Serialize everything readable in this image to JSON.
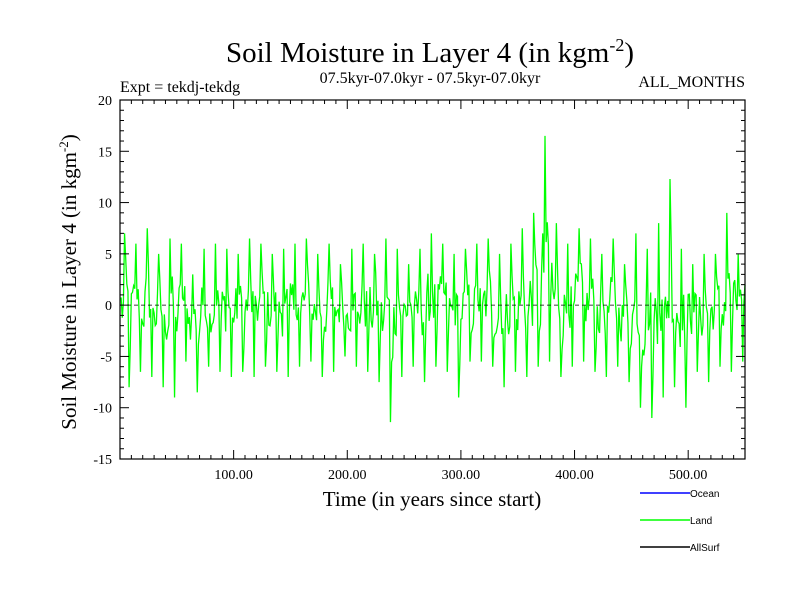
{
  "chart_data": {
    "type": "line",
    "title": "Soil Moisture in Layer 4 (in kgm",
    "title_superscript": "-2",
    "title_close": ")",
    "subtitle_left": "Expt = tekdj-tekdg",
    "subtitle_center": "07.5kyr-07.0kyr - 07.5kyr-07.0kyr",
    "subtitle_right": "ALL_MONTHS",
    "xlabel": "Time (in years since start)",
    "ylabel": "Soil Moisture in Layer 4 (in kgm",
    "ylabel_superscript": "-2",
    "ylabel_close": ")",
    "xlim": [
      0,
      550
    ],
    "ylim": [
      -15,
      20
    ],
    "xticks": [
      100,
      200,
      300,
      400,
      500
    ],
    "xtick_labels": [
      "100.00",
      "200.00",
      "300.00",
      "400.00",
      "500.00"
    ],
    "yticks": [
      -15,
      -10,
      -5,
      0,
      5,
      10,
      15,
      20
    ],
    "ytick_labels": [
      "-15",
      "-10",
      "-5",
      "0",
      "5",
      "10",
      "15",
      "20"
    ],
    "zero_line": 0,
    "legend": [
      {
        "name": "Ocean",
        "color": "#0000ff"
      },
      {
        "name": "Land",
        "color": "#00ff00"
      },
      {
        "name": "AllSurf",
        "color": "#000000"
      }
    ],
    "series": [
      {
        "name": "Land",
        "color": "#00ff00",
        "x_start": 1,
        "x_step": 1,
        "envelope_note": "approximate local max/min per 10-year window (dense yearly series)",
        "window_years": 10,
        "window_max": [
          7.0,
          6.0,
          7.5,
          5.0,
          6.5,
          6.0,
          3.0,
          5.5,
          6.0,
          5.5,
          5.0,
          6.5,
          6.0,
          5.0,
          5.5,
          6.0,
          6.5,
          5.0,
          6.0,
          4.0,
          5.5,
          6.0,
          5.0,
          6.5,
          5.5,
          4.0,
          5.5,
          7.0,
          6.0,
          5.0,
          5.5,
          6.0,
          6.5,
          5.0,
          6.0,
          7.5,
          9.0,
          16.5,
          8.0,
          6.0,
          7.5,
          6.5,
          5.0,
          6.5,
          4.0,
          7.0,
          5.5,
          8.0,
          12.3,
          5.5,
          4.0,
          5.0,
          5.0,
          9.0,
          5.0
        ],
        "window_min": [
          -8.0,
          -6.5,
          -7.0,
          -8.0,
          -9.0,
          -5.5,
          -8.5,
          -6.0,
          -6.5,
          -7.0,
          -6.5,
          -7.0,
          -6.0,
          -6.5,
          -7.0,
          -6.0,
          -5.5,
          -7.0,
          -6.5,
          -5.0,
          -6.0,
          -6.5,
          -7.5,
          -11.4,
          -7.0,
          -6.0,
          -7.5,
          -6.0,
          -6.5,
          -9.0,
          -5.5,
          -5.5,
          -6.0,
          -8.0,
          -6.5,
          -7.0,
          -6.0,
          -5.5,
          -7.0,
          -6.0,
          -5.5,
          -6.5,
          -7.0,
          -6.0,
          -7.5,
          -10.0,
          -11.0,
          -9.0,
          -8.0,
          -10.0,
          -6.5,
          -7.5,
          -6.0,
          -6.5,
          -5.5
        ]
      }
    ]
  }
}
